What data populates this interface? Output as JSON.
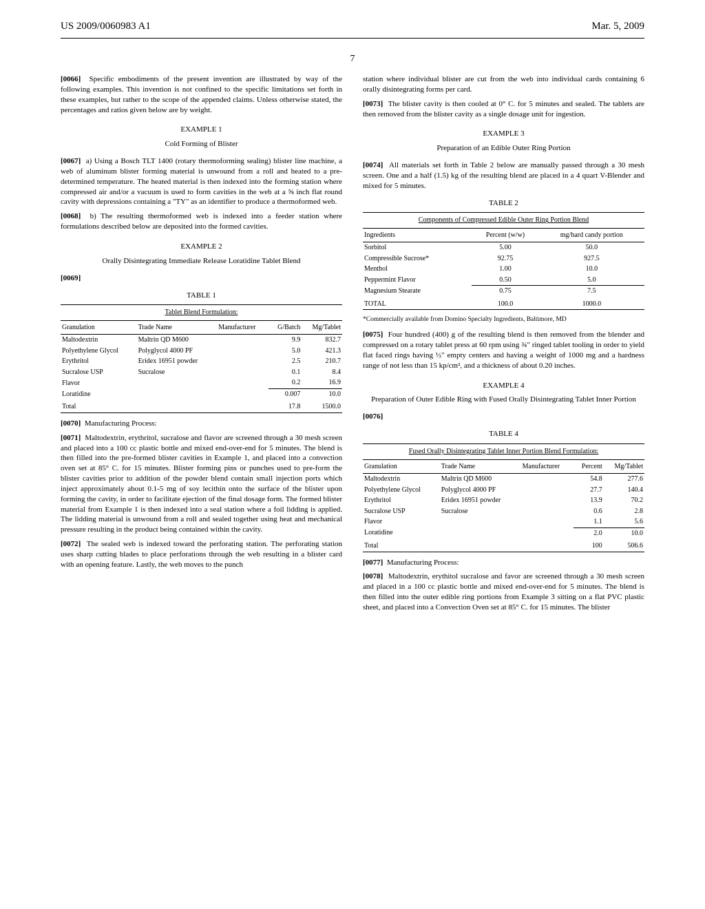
{
  "header": {
    "left": "US 2009/0060983 A1",
    "right": "Mar. 5, 2009"
  },
  "page_number": "7",
  "left": {
    "p66": {
      "num": "[0066]",
      "text": "Specific embodiments of the present invention are illustrated by way of the following examples. This invention is not confined to the specific limitations set forth in these examples, but rather to the scope of the appended claims. Unless otherwise stated, the percentages and ratios given below are by weight."
    },
    "ex1_head": "EXAMPLE 1",
    "ex1_sub": "Cold Forming of Blister",
    "p67": {
      "num": "[0067]",
      "text": "a) Using a Bosch TLT 1400 (rotary thermoforming sealing) blister line machine, a web of aluminum blister forming material is unwound from a roll and heated to a pre-determined temperature. The heated material is then indexed into the forming station where compressed air and/or a vacuum is used to form cavities in the web at a ⅝ inch flat round cavity with depressions containing a \"TY\" as an identifier to produce a thermoformed web."
    },
    "p68": {
      "num": "[0068]",
      "text": "b) The resulting thermoformed web is indexed into a feeder station where formulations described below are deposited into the formed cavities."
    },
    "ex2_head": "EXAMPLE 2",
    "ex2_sub": "Orally Disintegrating Immediate Release Loratidine Tablet Blend",
    "p69": {
      "num": "[0069]",
      "text": ""
    },
    "table1": {
      "label": "TABLE 1",
      "caption": "Tablet Blend Formulation:",
      "columns": [
        "Granulation",
        "Trade Name",
        "Manufacturer",
        "G/Batch",
        "Mg/Tablet"
      ],
      "rows": [
        [
          "Maltodextrin",
          "Maltrin QD M600",
          "",
          "9.9",
          "832.7"
        ],
        [
          "Polyethylene Glycol",
          "Polyglycol 4000 PF",
          "",
          "5.0",
          "421.3"
        ],
        [
          "Erythritol",
          "Eridex 16951 powder",
          "",
          "2.5",
          "210.7"
        ],
        [
          "Sucralose USP",
          "Sucralose",
          "",
          "0.1",
          "8.4"
        ],
        [
          "Flavor",
          "",
          "",
          "0.2",
          "16.9"
        ],
        [
          "Loratidine",
          "",
          "",
          "0.007",
          "10.0"
        ]
      ],
      "total": [
        "Total",
        "",
        "",
        "17.8",
        "1500.0"
      ]
    },
    "p70": {
      "num": "[0070]",
      "text": "Manufacturing Process:"
    },
    "p71": {
      "num": "[0071]",
      "text": "Maltodextrin, erythritol, sucralose and flavor are screened through a 30 mesh screen and placed into a 100 cc plastic bottle and mixed end-over-end for 5 minutes. The blend is then filled into the pre-formed blister cavities in Example 1, and placed into a convection oven set at 85° C. for 15 minutes. Blister forming pins or punches used to pre-form the blister cavities prior to addition of the powder blend contain small injection ports which inject approximately about 0.1-5 mg of soy lecithin onto the surface of the blister upon forming the cavity, in order to facilitate ejection of the final dosage form. The formed blister material from Example 1 is then indexed into a seal station where a foil lidding is applied. The lidding material is unwound from a roll and sealed together using heat and mechanical pressure resulting in the product being contained within the cavity."
    },
    "p72": {
      "num": "[0072]",
      "text": "The sealed web is indexed toward the perforating station. The perforating station uses sharp cutting blades to place perforations through the web resulting in a blister card with an opening feature. Lastly, the web moves to the punch"
    }
  },
  "right": {
    "pcontA": "station where individual blister are cut from the web into individual cards containing 6 orally disintegrating forms per card.",
    "p73": {
      "num": "[0073]",
      "text": "The blister cavity is then cooled at 0° C. for 5 minutes and sealed. The tablets are then removed from the blister cavity as a single dosage unit for ingestion."
    },
    "ex3_head": "EXAMPLE 3",
    "ex3_sub": "Preparation of an Edible Outer Ring Portion",
    "p74": {
      "num": "[0074]",
      "text": "All materials set forth in Table 2 below are manually passed through a 30 mesh screen. One and a half (1.5) kg of the resulting blend are placed in a 4 quart V-Blender and mixed for 5 minutes."
    },
    "table2": {
      "label": "TABLE 2",
      "caption": "Components of Compressed Edible Outer Ring Portion Blend",
      "columns": [
        "Ingredients",
        "Percent (w/w)",
        "mg/hard candy portion"
      ],
      "rows": [
        [
          "Sorbitol",
          "5.00",
          "50.0"
        ],
        [
          "Compressible Sucrose*",
          "92.75",
          "927.5"
        ],
        [
          "Menthol",
          "1.00",
          "10.0"
        ],
        [
          "Peppermint Flavor",
          "0.50",
          "5.0"
        ],
        [
          "Magnesium Stearate",
          "0.75",
          "7.5"
        ]
      ],
      "total": [
        "TOTAL",
        "100.0",
        "1000.0"
      ]
    },
    "footnote2": "*Commercially available from Domino Specialty Ingredients, Baltimore, MD",
    "p75": {
      "num": "[0075]",
      "text": "Four hundred (400) g of the resulting blend is then removed from the blender and compressed on a rotary tablet press at 60 rpm using ¾\" ringed tablet tooling in order to yield flat faced rings having ½\" empty centers and having a weight of 1000 mg and a hardness range of not less than 15 kp/cm², and a thickness of about 0.20 inches."
    },
    "ex4_head": "EXAMPLE 4",
    "ex4_sub": "Preparation of Outer Edible Ring with Fused Orally Disintegrating Tablet Inner Portion",
    "p76": {
      "num": "[0076]",
      "text": ""
    },
    "table4": {
      "label": "TABLE 4",
      "caption": "Fused Orally Disintegrating Tablet Inner Portion Blend Formulation:",
      "columns": [
        "Granulation",
        "Trade Name",
        "Manufacturer",
        "Percent",
        "Mg/Tablet"
      ],
      "rows": [
        [
          "Maltodextrin",
          "Maltrin QD M600",
          "",
          "54.8",
          "277.6"
        ],
        [
          "Polyethylene Glycol",
          "Polyglycol 4000 PF",
          "",
          "27.7",
          "140.4"
        ],
        [
          "Erythritol",
          "Eridex 16951 powder",
          "",
          "13.9",
          "70.2"
        ],
        [
          "Sucralose USP",
          "Sucralose",
          "",
          "0.6",
          "2.8"
        ],
        [
          "Flavor",
          "",
          "",
          "1.1",
          "5.6"
        ],
        [
          "Loratidine",
          "",
          "",
          "2.0",
          "10.0"
        ]
      ],
      "total": [
        "Total",
        "",
        "",
        "100",
        "506.6"
      ]
    },
    "p77": {
      "num": "[0077]",
      "text": "Manufacturing Process:"
    },
    "p78": {
      "num": "[0078]",
      "text": "Maltodextrin, erythitol sucralose and favor are screened through a 30 mesh screen and placed in a 100 cc plastic bottle and mixed end-over-end for 5 minutes. The blend is then filled into the outer edible ring portions from Example 3 sitting on a flat PVC plastic sheet, and placed into a Convection Oven set at 85° C. for 15 minutes. The blister"
    }
  }
}
